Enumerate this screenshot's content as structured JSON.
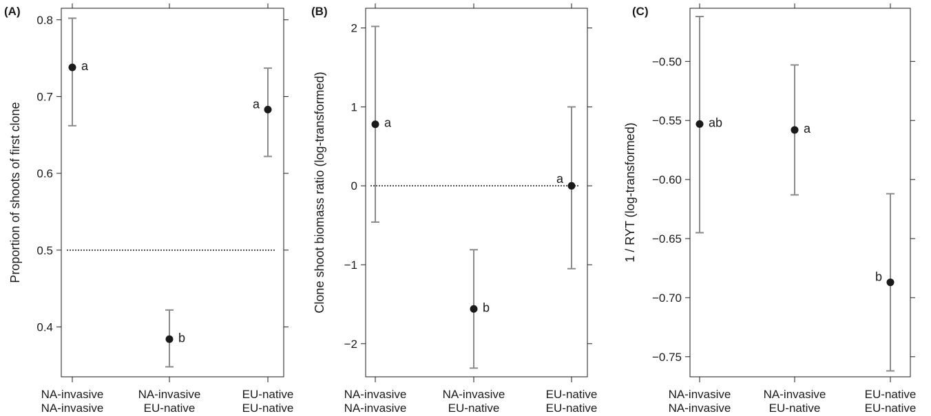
{
  "colors": {
    "point": "#1a1a1a",
    "errorbar": "#8a8a8a",
    "axis": "#1a1a1a",
    "reference_line": "#1a1a1a"
  },
  "chart_data": [
    {
      "panel_label": "(A)",
      "type": "scatter",
      "categories": [
        [
          "NA-invasive",
          "NA-invasive"
        ],
        [
          "NA-invasive",
          "EU-native"
        ],
        [
          "EU-native",
          "EU-native"
        ]
      ],
      "values": [
        0.738,
        0.384,
        0.683
      ],
      "error_low": [
        0.662,
        0.348,
        0.622
      ],
      "error_high": [
        0.802,
        0.422,
        0.737
      ],
      "letters": [
        "a",
        "b",
        "a"
      ],
      "letter_side": [
        "right",
        "right",
        "left"
      ],
      "reference_line": 0.5,
      "ylabel": "Proportion of shoots of first clone",
      "yticks": [
        "0.4",
        "0.5",
        "0.6",
        "0.7",
        "0.8"
      ],
      "ylim": [
        0.335,
        0.815
      ],
      "grid": false
    },
    {
      "panel_label": "(B)",
      "type": "scatter",
      "categories": [
        [
          "NA-invasive",
          "NA-invasive"
        ],
        [
          "NA-invasive",
          "EU-native"
        ],
        [
          "EU-native",
          "EU-native"
        ]
      ],
      "values": [
        0.78,
        -1.56,
        0.0
      ],
      "error_low": [
        -0.46,
        -2.31,
        -1.05
      ],
      "error_high": [
        2.02,
        -0.81,
        1.0
      ],
      "letters": [
        "a",
        "b",
        "a"
      ],
      "letter_side": [
        "right",
        "right",
        "left-above"
      ],
      "reference_line": 0,
      "ylabel": "Clone shoot biomass ratio (log-transformed)",
      "yticks": [
        "−2",
        "−1",
        "0",
        "1",
        "2"
      ],
      "ylim": [
        -2.42,
        2.25
      ],
      "grid": false
    },
    {
      "panel_label": "(C)",
      "type": "scatter",
      "categories": [
        [
          "NA-invasive",
          "NA-invasive"
        ],
        [
          "NA-invasive",
          "EU-native"
        ],
        [
          "EU-native",
          "EU-native"
        ]
      ],
      "values": [
        -0.553,
        -0.558,
        -0.687
      ],
      "error_low": [
        -0.645,
        -0.613,
        -0.762
      ],
      "error_high": [
        -0.462,
        -0.503,
        -0.612
      ],
      "letters": [
        "ab",
        "a",
        "b"
      ],
      "letter_side": [
        "right",
        "right",
        "left"
      ],
      "reference_line": null,
      "ylabel": "1 / RYT (log-transformed)",
      "yticks": [
        "−0.75",
        "−0.70",
        "−0.65",
        "−0.60",
        "−0.55",
        "−0.50"
      ],
      "ylim": [
        -0.767,
        -0.455
      ],
      "grid": false
    }
  ]
}
